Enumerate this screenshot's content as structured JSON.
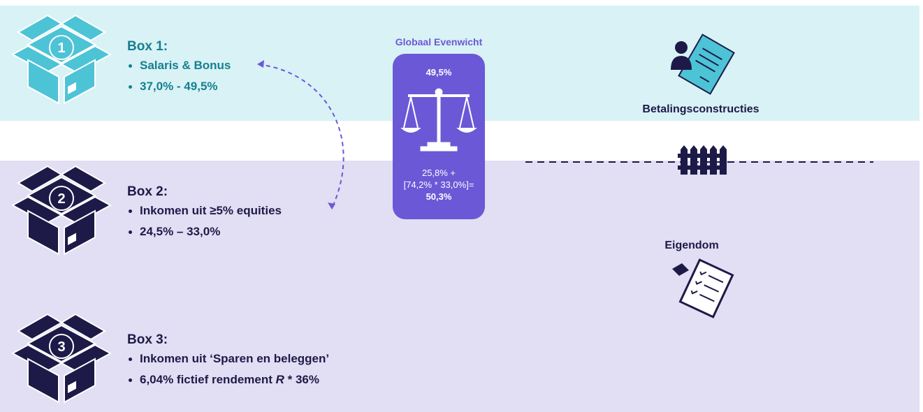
{
  "boxes": [
    {
      "number": "1",
      "title": "Box 1:",
      "items": [
        "Salaris & Bonus",
        "37,0% - 49,5%"
      ]
    },
    {
      "number": "2",
      "title": "Box 2:",
      "items": [
        "Inkomen uit ≥5% equities",
        "24,5% – 33,0%"
      ]
    },
    {
      "number": "3",
      "title": "Box 3:",
      "items": [
        "Inkomen uit ‘Sparen en beleggen’",
        {
          "before": "6,04% fictief rendement ",
          "italic": "R",
          "after": " * 36%"
        }
      ]
    }
  ],
  "center": {
    "title": "Globaal Evenwicht",
    "top_rate": "49,5%",
    "formula": [
      "25,8% +",
      "[74,2% * 33,0%]="
    ],
    "result": "50,3%"
  },
  "right": {
    "top_label": "Betalingsconstructies",
    "bottom_label": "Eigendom"
  }
}
